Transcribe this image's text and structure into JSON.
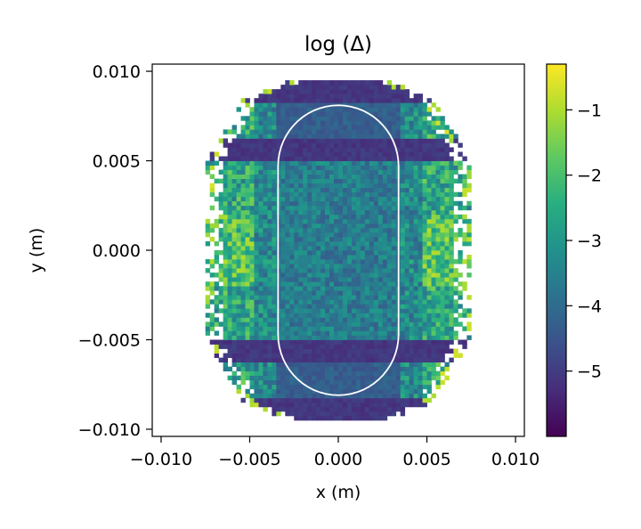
{
  "chart_data": {
    "type": "heatmap",
    "title": "log (Δ)",
    "xlabel": "x (m)",
    "ylabel": "y (m)",
    "xlim": [
      -0.0105,
      0.0105
    ],
    "ylim": [
      -0.0104,
      0.0104
    ],
    "xticks": [
      -0.01,
      -0.005,
      0.0,
      0.005,
      0.01
    ],
    "xtick_labels": [
      "−0.010",
      "−0.005",
      "0.000",
      "0.005",
      "0.010"
    ],
    "yticks": [
      -0.01,
      -0.005,
      0.0,
      0.005,
      0.01
    ],
    "ytick_labels": [
      "−0.010",
      "−0.005",
      "0.000",
      "0.005",
      "0.010"
    ],
    "grid": false,
    "colormap": "viridis",
    "colorbar": {
      "range": [
        -6.0,
        -0.3
      ],
      "ticks": [
        -5,
        -4,
        -3,
        -2,
        -1
      ],
      "tick_labels": [
        "−5",
        "−4",
        "−3",
        "−2",
        "−1"
      ]
    },
    "cell_size": 0.00025,
    "domain": {
      "y_extent": 0.0094,
      "half_width_center": 0.0075,
      "half_width_upper": 0.0053,
      "half_width_top": 0.003
    },
    "regions": [
      {
        "name": "outer-lobes",
        "y_range": [
          -0.0094,
          0.0094
        ],
        "x_abs_range": [
          0.005,
          0.0076
        ],
        "typical_value": -2.0
      },
      {
        "name": "inner-core",
        "y_range": [
          -0.005,
          0.005
        ],
        "x_abs_range": [
          0.0,
          0.0035
        ],
        "typical_value": -3.5
      },
      {
        "name": "dark-bands",
        "y_centers": [
          -0.0057,
          0.0057,
          -0.0088,
          0.0088
        ],
        "typical_value": -5.2
      }
    ],
    "overlay_contour": {
      "shape": "stadium",
      "half_width": 0.0034,
      "half_height": 0.0081,
      "color": "#ffffff"
    }
  }
}
